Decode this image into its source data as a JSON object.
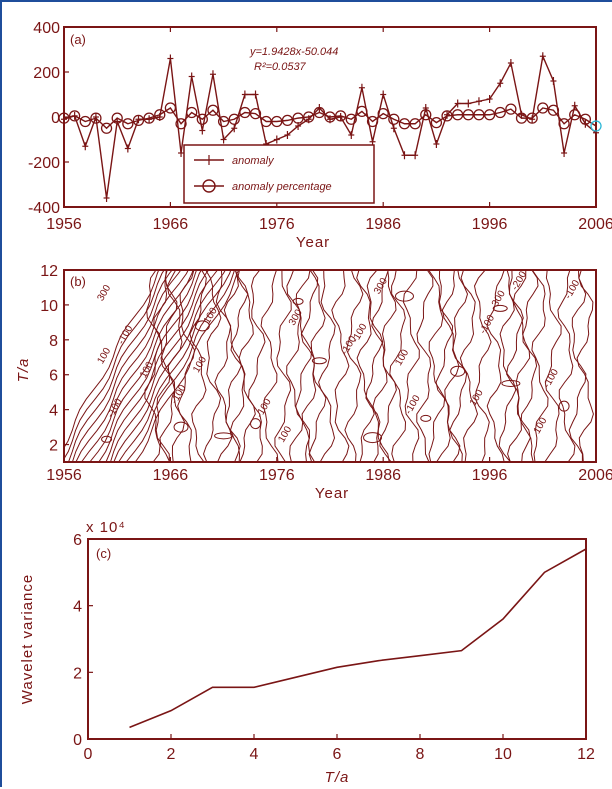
{
  "colors": {
    "ink": "#7a1515",
    "frame": "#1f4e9b",
    "marker_end": "#29b6d6"
  },
  "chart_data": [
    {
      "type": "line",
      "panel": "(a)",
      "xlabel": "Year",
      "ylabel": "",
      "xlim": [
        1956,
        2006
      ],
      "ylim": [
        -400,
        400
      ],
      "xticks": [
        "1956",
        "1966",
        "1976",
        "1986",
        "1996",
        "2006"
      ],
      "yticks": [
        "-400",
        "-200",
        "0",
        "200",
        "400"
      ],
      "equation": "y=1.9428x-50.044",
      "r2": "R²=0.0537",
      "legend": [
        "anomaly",
        "anomaly percentage"
      ],
      "legend_position": "lower-left",
      "x": [
        1956,
        1957,
        1958,
        1959,
        1960,
        1961,
        1962,
        1963,
        1964,
        1965,
        1966,
        1967,
        1968,
        1969,
        1970,
        1971,
        1972,
        1973,
        1974,
        1975,
        1976,
        1977,
        1978,
        1979,
        1980,
        1981,
        1982,
        1983,
        1984,
        1985,
        1986,
        1987,
        1988,
        1989,
        1990,
        1991,
        1992,
        1993,
        1994,
        1995,
        1996,
        1997,
        1998,
        1999,
        2000,
        2001,
        2002,
        2003,
        2004,
        2005,
        2006
      ],
      "series": [
        {
          "name": "anomaly",
          "values": [
            -10,
            5,
            -130,
            0,
            -360,
            -20,
            -140,
            -10,
            -10,
            0,
            260,
            -160,
            180,
            -60,
            190,
            -100,
            -50,
            100,
            100,
            -120,
            -100,
            -80,
            -40,
            -10,
            40,
            -10,
            0,
            -80,
            130,
            -110,
            100,
            -50,
            -170,
            -170,
            40,
            -120,
            10,
            60,
            60,
            70,
            80,
            150,
            240,
            10,
            -10,
            270,
            160,
            -160,
            50,
            -30,
            -70
          ]
        },
        {
          "name": "anomaly percentage",
          "values": [
            -5,
            5,
            -20,
            -5,
            -50,
            -5,
            -30,
            -15,
            -5,
            10,
            40,
            -30,
            20,
            -10,
            30,
            -20,
            -10,
            20,
            15,
            -20,
            -20,
            -15,
            -5,
            0,
            20,
            0,
            5,
            -10,
            25,
            -20,
            15,
            -10,
            -30,
            -30,
            10,
            -25,
            5,
            10,
            10,
            10,
            10,
            20,
            35,
            -5,
            -5,
            40,
            30,
            -30,
            10,
            -10,
            -40
          ]
        }
      ]
    },
    {
      "type": "contour",
      "panel": "(b)",
      "xlabel": "Year",
      "ylabel": "T/a",
      "xlim": [
        1956,
        2006
      ],
      "ylim": [
        1,
        12
      ],
      "xticks": [
        "1956",
        "1966",
        "1976",
        "1986",
        "1996",
        "2006"
      ],
      "yticks": [
        "2",
        "4",
        "6",
        "8",
        "10",
        "12"
      ],
      "contour_labels": [
        "300",
        "-100",
        "100",
        "100",
        "-100",
        "100",
        "100",
        "-100",
        "300",
        "-100",
        "-100",
        "300",
        "-100",
        "-100",
        "100",
        "100",
        "-300",
        "-100",
        "-200",
        "-100",
        "-100",
        "100",
        "100"
      ]
    },
    {
      "type": "line",
      "panel": "(c)",
      "xlabel": "T/a",
      "ylabel": "Wavelet variance",
      "scale_label": "x 10⁴",
      "xlim": [
        0,
        12
      ],
      "ylim": [
        0,
        6
      ],
      "xticks": [
        "0",
        "2",
        "4",
        "6",
        "8",
        "10",
        "12"
      ],
      "yticks": [
        "0",
        "2",
        "4",
        "6"
      ],
      "x": [
        1,
        2,
        3,
        4,
        5,
        6,
        7,
        8,
        9,
        10,
        11,
        12
      ],
      "series": [
        {
          "values": [
            0.35,
            0.85,
            1.55,
            1.55,
            1.85,
            2.15,
            2.35,
            2.5,
            2.65,
            3.6,
            5.0,
            5.7
          ]
        }
      ]
    }
  ]
}
